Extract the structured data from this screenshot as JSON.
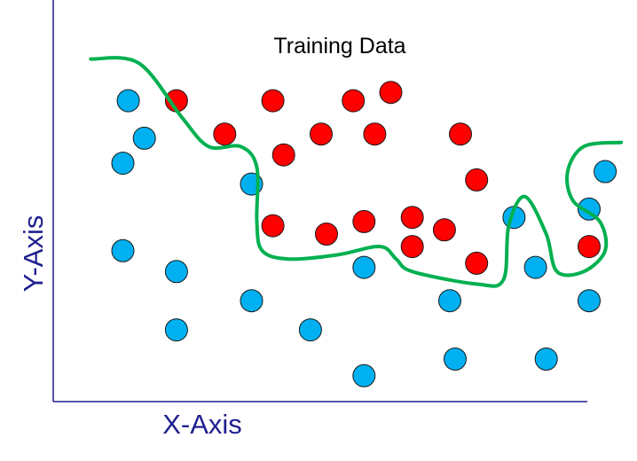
{
  "chart_data": {
    "type": "scatter",
    "title": "Training Data",
    "xlabel": "X-Axis",
    "ylabel": "Y-Axis",
    "xlim": [
      0,
      100
    ],
    "ylim": [
      0,
      100
    ],
    "grid": false,
    "colors": {
      "class_a": "#00b0f0",
      "class_b": "#ff0000",
      "boundary": "#00b050",
      "axis": "#1f1f8f",
      "axis_label": "#1f1f8f"
    },
    "series": [
      {
        "points": [
          [
            14,
            72
          ],
          [
            17,
            63
          ],
          [
            13,
            57
          ],
          [
            37,
            52
          ],
          [
            13,
            36
          ],
          [
            23,
            31
          ],
          [
            37,
            24
          ],
          [
            23,
            17
          ],
          [
            48,
            17
          ],
          [
            58,
            32
          ],
          [
            74,
            24
          ],
          [
            75,
            10
          ],
          [
            86,
            44
          ],
          [
            90,
            32
          ],
          [
            92,
            10
          ],
          [
            100,
            46
          ],
          [
            100,
            24
          ],
          [
            103,
            55
          ],
          [
            58,
            6
          ]
        ]
      },
      {
        "points": [
          [
            23,
            72
          ],
          [
            41,
            72
          ],
          [
            56,
            72
          ],
          [
            63,
            74
          ],
          [
            32,
            64
          ],
          [
            50,
            64
          ],
          [
            60,
            64
          ],
          [
            76,
            64
          ],
          [
            43,
            59
          ],
          [
            79,
            53
          ],
          [
            41,
            42
          ],
          [
            51,
            40
          ],
          [
            58,
            43
          ],
          [
            67,
            44
          ],
          [
            73,
            41
          ],
          [
            67,
            37
          ],
          [
            79,
            33
          ],
          [
            100,
            37
          ]
        ]
      }
    ],
    "decision_boundary": [
      [
        7,
        82
      ],
      [
        16,
        81
      ],
      [
        24,
        68
      ],
      [
        29,
        61
      ],
      [
        35,
        61
      ],
      [
        38,
        56
      ],
      [
        38,
        43
      ],
      [
        39,
        36
      ],
      [
        44,
        34
      ],
      [
        53,
        35
      ],
      [
        61,
        37
      ],
      [
        64,
        34
      ],
      [
        67,
        31
      ],
      [
        79,
        28
      ],
      [
        84,
        29
      ],
      [
        85,
        42
      ],
      [
        88,
        49
      ],
      [
        92,
        40
      ],
      [
        94,
        31
      ],
      [
        99,
        31
      ],
      [
        103,
        36
      ],
      [
        102,
        43
      ],
      [
        97,
        48
      ],
      [
        96,
        55
      ],
      [
        99,
        61
      ],
      [
        106,
        62
      ]
    ]
  }
}
